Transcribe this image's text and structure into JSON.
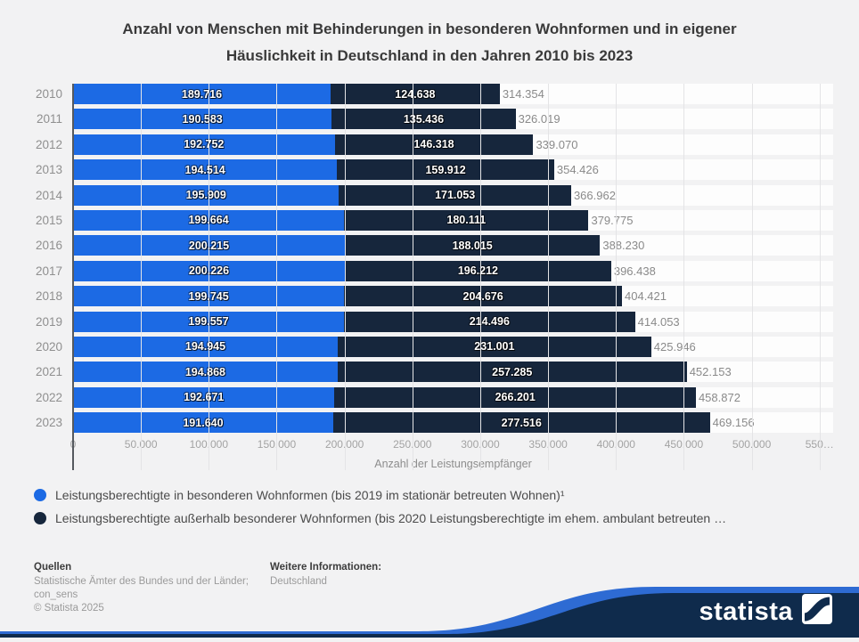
{
  "title": {
    "line1": "Anzahl von Menschen mit Behinderungen in besonderen Wohnformen und in eigener",
    "line2": "Häuslichkeit in Deutschland in den Jahren 2010 bis 2023"
  },
  "chart_data": {
    "type": "bar",
    "orientation": "horizontal",
    "stacked": true,
    "categories": [
      "2010",
      "2011",
      "2012",
      "2013",
      "2014",
      "2015",
      "2016",
      "2017",
      "2018",
      "2019",
      "2020",
      "2021",
      "2022",
      "2023"
    ],
    "series": [
      {
        "name": "Leistungsberechtigte in besonderen Wohnformen (bis 2019 im stationär betreuten Wohnen)¹",
        "color": "#1c6ae4",
        "values": [
          189716,
          190583,
          192752,
          194514,
          195909,
          199664,
          200215,
          200226,
          199745,
          199557,
          194945,
          194868,
          192671,
          191640
        ]
      },
      {
        "name": "Leistungsberechtigte außerhalb besonderer Wohnformen (bis 2020 Leistungsberechtigte im ehem. ambulant betreuten …",
        "color": "#16263c",
        "values": [
          124638,
          135436,
          146318,
          159912,
          171053,
          180111,
          188015,
          196212,
          204676,
          214496,
          231001,
          257285,
          266201,
          277516
        ]
      }
    ],
    "totals": [
      314354,
      326019,
      339070,
      354426,
      366962,
      379775,
      388230,
      396438,
      404421,
      414053,
      425946,
      452153,
      458872,
      469156
    ],
    "xlabel": "Anzahl der Leistungsempfänger",
    "xlim": [
      0,
      560000
    ],
    "tick_values": [
      0,
      50000,
      100000,
      150000,
      200000,
      250000,
      300000,
      350000,
      400000,
      450000,
      500000,
      550000
    ],
    "tick_labels": [
      "0",
      "50.000",
      "100.000",
      "150.000",
      "200.000",
      "250.000",
      "300.000",
      "350.000",
      "400.000",
      "450.000",
      "500.000",
      "550…"
    ],
    "grid": true,
    "legend_position": "bottom"
  },
  "legend": {
    "items": [
      {
        "label": "Leistungsberechtigte in besonderen Wohnformen (bis 2019 im stationär betreuten Wohnen)¹",
        "color": "#1c6ae4"
      },
      {
        "label": "Leistungsberechtigte außerhalb besonderer Wohnformen (bis 2020 Leistungsberechtigte im ehem. ambulant betreuten …",
        "color": "#16263c"
      }
    ]
  },
  "footer": {
    "sources_heading": "Quellen",
    "sources_line1": "Statistische Ämter des Bundes und der Länder;",
    "sources_line2": "con_sens",
    "copyright": "© Statista 2025",
    "info_heading": "Weitere Informationen:",
    "info_value": "Deutschland"
  },
  "branding": {
    "logo_text": "statista",
    "band_navy": "#0f2b4c",
    "band_blue": "#2e6bd3"
  }
}
